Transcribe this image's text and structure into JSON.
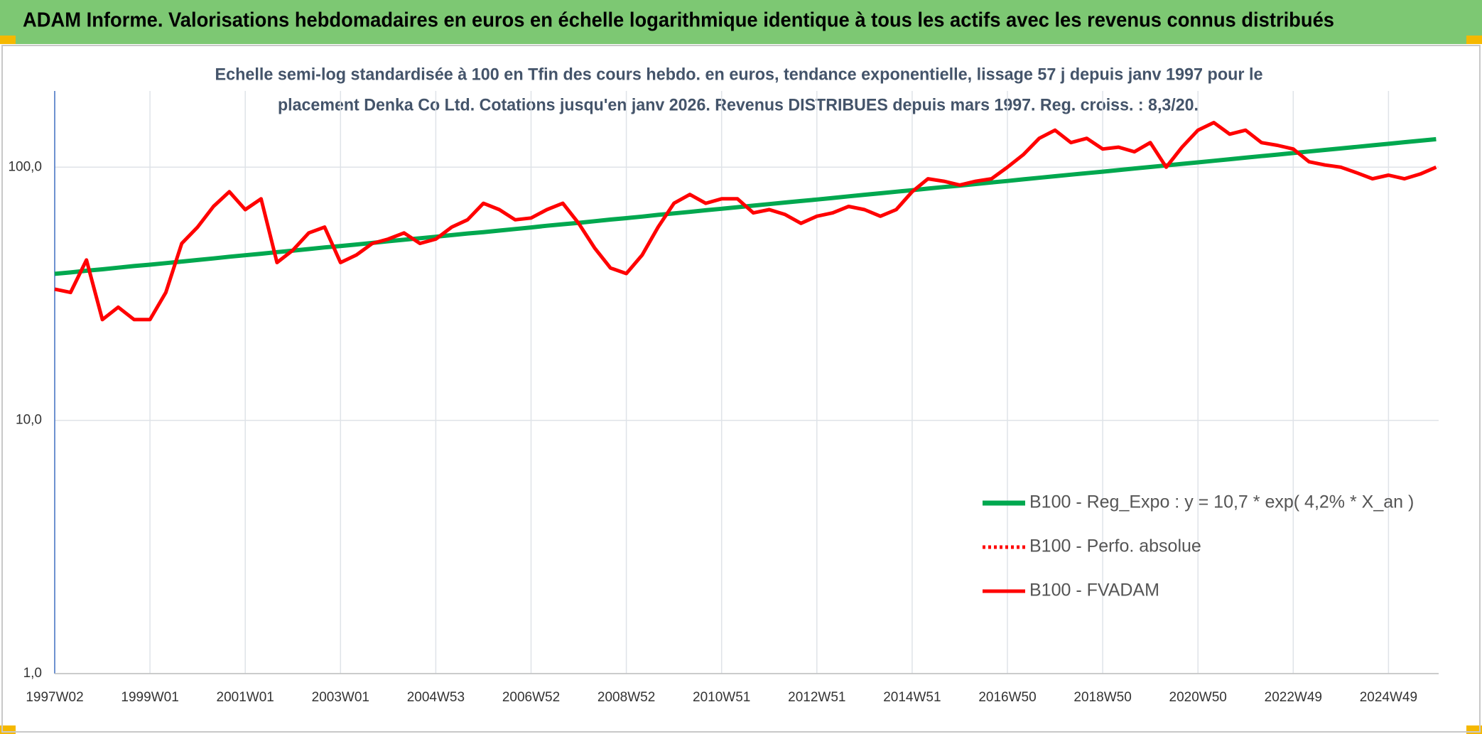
{
  "header": {
    "title": "ADAM Informe. Valorisations hebdomadaires en euros en échelle logarithmique identique à tous les actifs avec les revenus connus distribués"
  },
  "chart_data": {
    "type": "line",
    "title": [
      "Echelle semi-log standardisée à 100 en Tfin des cours hebdo. en euros, tendance exponentielle, lissage 57 j depuis janv 1997 pour le",
      "placement Denka Co Ltd. Cotations jusqu'en janv 2026. Revenus DISTRIBUES depuis mars 1997. Reg. croiss. : 8,3/20."
    ],
    "categories": [
      "1997W02",
      null,
      null,
      null,
      null,
      null,
      "1999W01",
      null,
      null,
      null,
      null,
      null,
      "2001W01",
      null,
      null,
      null,
      null,
      null,
      "2003W01",
      null,
      null,
      null,
      null,
      null,
      "2004W53",
      null,
      null,
      null,
      null,
      null,
      "2006W52",
      null,
      null,
      null,
      null,
      null,
      "2008W52",
      null,
      null,
      null,
      null,
      null,
      "2010W51",
      null,
      null,
      null,
      null,
      null,
      "2012W51",
      null,
      null,
      null,
      null,
      null,
      "2014W51",
      null,
      null,
      null,
      null,
      null,
      "2016W50",
      null,
      null,
      null,
      null,
      null,
      "2018W50",
      null,
      null,
      null,
      null,
      null,
      "2020W50",
      null,
      null,
      null,
      null,
      null,
      "2022W49",
      null,
      null,
      null,
      null,
      null,
      "2024W49",
      null,
      null,
      null
    ],
    "yscale": "log",
    "ylim": [
      1,
      200
    ],
    "yticks": [
      {
        "value": 1,
        "label": "1,0"
      },
      {
        "value": 10,
        "label": "10,0"
      },
      {
        "value": 100,
        "label": "100,0"
      }
    ],
    "grid": true,
    "legend": "right",
    "series": [
      {
        "name": "B100 - Reg_Expo : y = 10,7 * exp( 4,2% *  X_an )",
        "color": "#00a84f",
        "style": "solid",
        "values": [
          37.9,
          38.4,
          39.0,
          39.5,
          40.1,
          40.7,
          41.2,
          41.8,
          42.4,
          43.0,
          43.6,
          44.3,
          44.9,
          45.5,
          46.2,
          46.8,
          47.5,
          48.2,
          48.8,
          49.5,
          50.2,
          51.0,
          51.7,
          52.4,
          53.1,
          53.9,
          54.7,
          55.4,
          56.2,
          57.0,
          57.8,
          58.7,
          59.5,
          60.3,
          61.2,
          62.1,
          62.9,
          63.8,
          64.8,
          65.7,
          66.6,
          67.6,
          68.5,
          69.5,
          70.5,
          71.5,
          72.5,
          73.5,
          74.5,
          75.6,
          76.7,
          77.8,
          78.9,
          80.0,
          81.1,
          82.3,
          83.5,
          84.6,
          85.8,
          87.0,
          88.2,
          89.5,
          90.8,
          92.1,
          93.4,
          94.7,
          96.0,
          97.4,
          98.8,
          100.2,
          101.6,
          103.1,
          104.5,
          106.0,
          107.5,
          109.0,
          110.6,
          112.1,
          113.7,
          115.3,
          117.0,
          118.6,
          120.3,
          122.0,
          123.7,
          125.5,
          127.2,
          129.0
        ]
      },
      {
        "name": "B100 - Perfo. absolue",
        "color": "#ff0000",
        "style": "dotted",
        "values": [
          null,
          null,
          null,
          null,
          null,
          null,
          null,
          null,
          null,
          null,
          null,
          null,
          null,
          null,
          null,
          null,
          null,
          null,
          null,
          null,
          null,
          null,
          null,
          null,
          null,
          null,
          null,
          null,
          null,
          null,
          null,
          null,
          null,
          null,
          null,
          null,
          null,
          null,
          null,
          null,
          null,
          null,
          null,
          null,
          null,
          null,
          null,
          null,
          null,
          null,
          null,
          null,
          null,
          null,
          null,
          null,
          null,
          null,
          null,
          null,
          null,
          null,
          null,
          null,
          null,
          null,
          null,
          null,
          null,
          null,
          null,
          null,
          null,
          null,
          null,
          null,
          null,
          null,
          null,
          null,
          null,
          null,
          null,
          null,
          null,
          null,
          null,
          null
        ]
      },
      {
        "name": "B100 - FVADAM",
        "color": "#ff0000",
        "style": "solid",
        "values": [
          33,
          32,
          43,
          25,
          28,
          25,
          25,
          32,
          50,
          58,
          70,
          80,
          68,
          75,
          42,
          47,
          55,
          58,
          42,
          45,
          50,
          52,
          55,
          50,
          52,
          58,
          62,
          72,
          68,
          62,
          63,
          68,
          72,
          60,
          48,
          40,
          38,
          45,
          58,
          72,
          78,
          72,
          75,
          75,
          66,
          68,
          65,
          60,
          64,
          66,
          70,
          68,
          64,
          68,
          80,
          90,
          88,
          85,
          88,
          90,
          100,
          112,
          130,
          140,
          125,
          130,
          118,
          120,
          115,
          125,
          100,
          120,
          140,
          150,
          135,
          140,
          125,
          122,
          118,
          105,
          102,
          100,
          95,
          90,
          93,
          90,
          94,
          100
        ]
      }
    ]
  }
}
